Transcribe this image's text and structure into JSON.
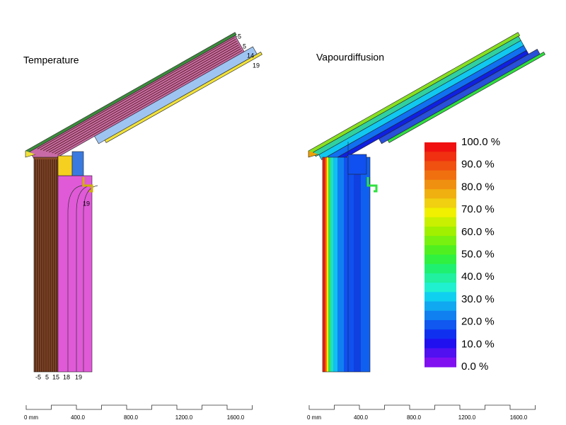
{
  "panels": [
    {
      "title": "Temperature",
      "isotherm_labels": [
        "-5",
        "5",
        "14",
        "19",
        "19",
        "-5",
        "5",
        "15",
        "18",
        "19"
      ],
      "scale_labels": [
        "0 mm",
        "400.0",
        "800.0",
        "1200.0",
        "1600.0"
      ]
    },
    {
      "title": "Vapourdiffusion",
      "legend": [
        "100.0 %",
        "90.0 %",
        "80.0 %",
        "70.0 %",
        "60.0 %",
        "50.0 %",
        "40.0 %",
        "30.0 %",
        "20.0 %",
        "10.0 %",
        "0.0 %"
      ],
      "scale_labels": [
        "0 mm",
        "400.0",
        "800.0",
        "1200.0",
        "1600.0"
      ]
    }
  ]
}
